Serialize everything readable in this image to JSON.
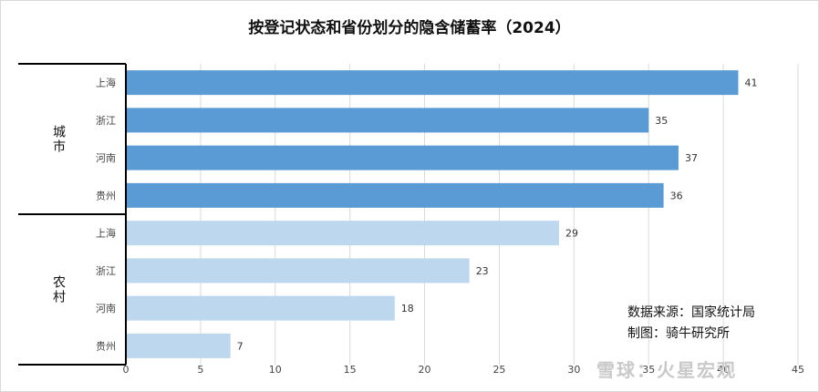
{
  "chart_data": {
    "type": "bar",
    "orientation": "horizontal",
    "title": "按登记状态和省份划分的隐含储蓄率（2024）",
    "groups": [
      {
        "name": "城市",
        "color": "#5b9bd5",
        "categories": [
          "上海",
          "浙江",
          "河南",
          "贵州"
        ],
        "values": [
          41,
          35,
          37,
          36
        ]
      },
      {
        "name": "农村",
        "color": "#bdd7ee",
        "categories": [
          "上海",
          "浙江",
          "河南",
          "贵州"
        ],
        "values": [
          29,
          23,
          18,
          7
        ]
      }
    ],
    "xlim": [
      0,
      45
    ],
    "xticks": [
      0,
      5,
      10,
      15,
      20,
      25,
      30,
      35,
      40,
      45
    ],
    "grid": true
  },
  "source_note": {
    "data_source": "数据来源：国家统计局",
    "chart_by": "制图：骑牛研究所"
  },
  "watermark": "雪球：火星宏观"
}
